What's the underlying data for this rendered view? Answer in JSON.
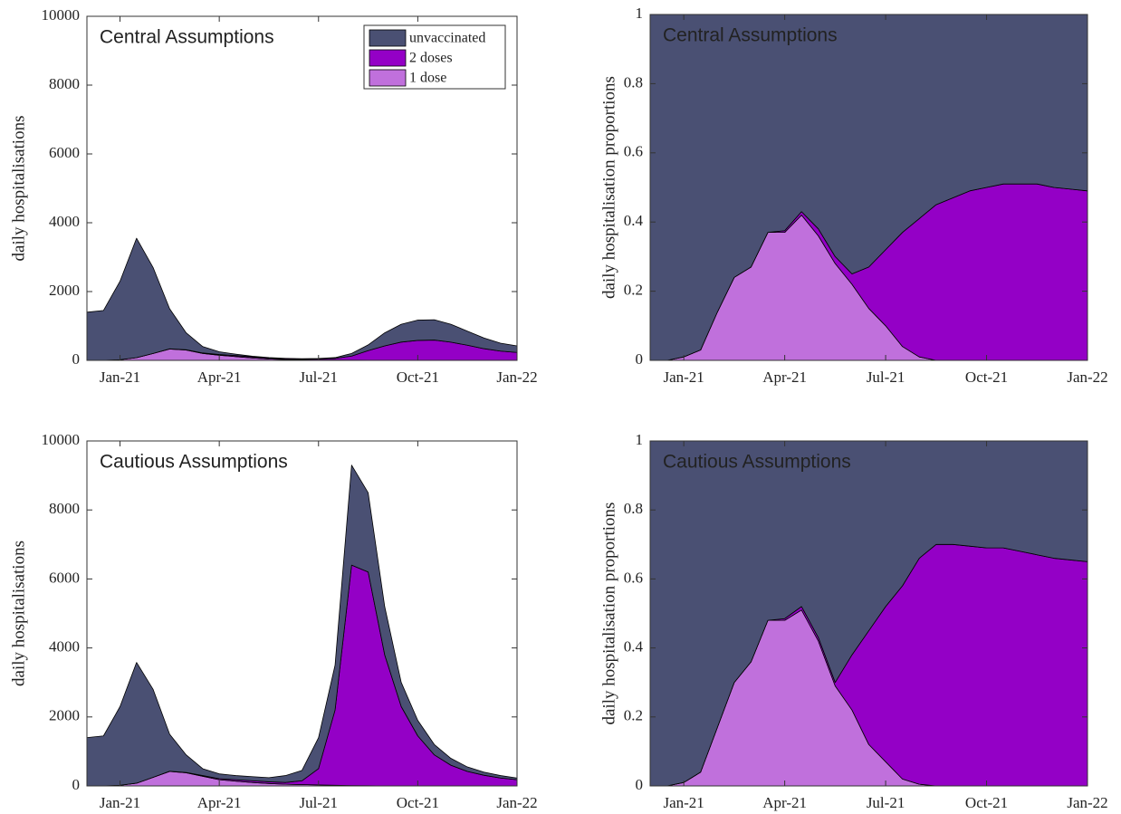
{
  "chart_data": [
    {
      "type": "stacked_area",
      "annotation": "Central Assumptions",
      "ylabel": "daily hospitalisations",
      "categories": [
        null,
        null,
        "Jan-21",
        null,
        null,
        null,
        null,
        null,
        "Apr-21",
        null,
        null,
        null,
        null,
        null,
        "Jul-21",
        null,
        null,
        null,
        null,
        null,
        "Oct-21",
        null,
        null,
        null,
        null,
        null,
        "Jan-22"
      ],
      "series": [
        {
          "name": "unvaccinated",
          "color": "#4a5073",
          "values": [
            1400,
            1450,
            2280,
            3470,
            2500,
            1165,
            490,
            185,
            80,
            40,
            20,
            15,
            10,
            10,
            15,
            22,
            75,
            167,
            378,
            519,
            590,
            590,
            520,
            410,
            310,
            230,
            190
          ]
        },
        {
          "name": "2 doses",
          "color": "#9400c6",
          "values": [
            0,
            0,
            0,
            0,
            0,
            5,
            10,
            15,
            20,
            30,
            30,
            25,
            25,
            25,
            30,
            50,
            120,
            280,
            420,
            530,
            580,
            590,
            530,
            440,
            340,
            270,
            230
          ]
        },
        {
          "name": "1 dose",
          "color": "#c070dc",
          "values": [
            0,
            0,
            20,
            80,
            200,
            330,
            300,
            200,
            150,
            110,
            70,
            40,
            25,
            15,
            10,
            8,
            5,
            3,
            2,
            1,
            0,
            0,
            0,
            0,
            0,
            0,
            0
          ]
        }
      ],
      "ylim": [
        0,
        10000
      ],
      "yticks": [
        0,
        2000,
        4000,
        6000,
        8000,
        10000
      ],
      "legend": "upper right"
    },
    {
      "type": "stacked_area",
      "annotation": "Central Assumptions",
      "ylabel": "daily hospitalisation proportions",
      "categories": [
        null,
        null,
        "Jan-21",
        null,
        null,
        null,
        null,
        null,
        "Apr-21",
        null,
        null,
        null,
        null,
        null,
        "Jul-21",
        null,
        null,
        null,
        null,
        null,
        "Oct-21",
        null,
        null,
        null,
        null,
        null,
        "Jan-22"
      ],
      "series": [
        {
          "color": "#4a5073",
          "values": [
            1,
            1,
            0.99,
            0.97,
            0.86,
            0.76,
            0.73,
            0.63,
            0.625,
            0.57,
            0.62,
            0.7,
            0.75,
            0.73,
            0.68,
            0.63,
            0.59,
            0.55,
            0.53,
            0.51,
            0.5,
            0.49,
            0.49,
            0.49,
            0.5,
            0.505,
            0.51
          ]
        },
        {
          "color": "#9400c6",
          "values": [
            0,
            0,
            0,
            0,
            0,
            0,
            0,
            0,
            0.005,
            0.01,
            0.02,
            0.02,
            0.03,
            0.12,
            0.22,
            0.33,
            0.4,
            0.45,
            0.47,
            0.49,
            0.5,
            0.51,
            0.51,
            0.51,
            0.5,
            0.495,
            0.49
          ]
        },
        {
          "color": "#c070dc",
          "values": [
            0,
            0,
            0.01,
            0.03,
            0.14,
            0.24,
            0.27,
            0.37,
            0.37,
            0.42,
            0.36,
            0.28,
            0.22,
            0.15,
            0.1,
            0.04,
            0.01,
            0,
            0,
            0,
            0,
            0,
            0,
            0,
            0,
            0,
            0
          ]
        }
      ],
      "ylim": [
        0,
        1
      ],
      "yticks": [
        0,
        0.2,
        0.4,
        0.6,
        0.8,
        1
      ]
    },
    {
      "type": "stacked_area",
      "annotation": "Cautious Assumptions",
      "ylabel": "daily hospitalisations",
      "categories": [
        null,
        null,
        "Jan-21",
        null,
        null,
        null,
        null,
        null,
        "Apr-21",
        null,
        null,
        null,
        null,
        null,
        "Jul-21",
        null,
        null,
        null,
        null,
        null,
        "Oct-21",
        null,
        null,
        null,
        null,
        null,
        "Jan-22"
      ],
      "series": [
        {
          "color": "#4a5073",
          "values": [
            1400,
            1450,
            2280,
            3500,
            2550,
            1075,
            510,
            200,
            140,
            120,
            120,
            120,
            200,
            300,
            900,
            1300,
            2900,
            2300,
            1400,
            700,
            450,
            300,
            200,
            130,
            90,
            70,
            50
          ]
        },
        {
          "color": "#9400c6",
          "values": [
            0,
            0,
            0,
            0,
            0,
            5,
            10,
            20,
            30,
            40,
            50,
            50,
            50,
            110,
            470,
            2180,
            6390,
            6195,
            3800,
            2300,
            1450,
            900,
            600,
            420,
            310,
            230,
            180
          ]
        },
        {
          "color": "#c070dc",
          "values": [
            0,
            0,
            20,
            80,
            250,
            420,
            380,
            280,
            180,
            140,
            100,
            70,
            50,
            40,
            30,
            20,
            10,
            5,
            0,
            0,
            0,
            0,
            0,
            0,
            0,
            0,
            0
          ]
        }
      ],
      "ylim": [
        0,
        10000
      ],
      "yticks": [
        0,
        2000,
        4000,
        6000,
        8000,
        10000
      ]
    },
    {
      "type": "stacked_area",
      "annotation": "Cautious Assumptions",
      "ylabel": "daily hospitalisation proportions",
      "categories": [
        null,
        null,
        "Jan-21",
        null,
        null,
        null,
        null,
        null,
        "Apr-21",
        null,
        null,
        null,
        null,
        null,
        "Jul-21",
        null,
        null,
        null,
        null,
        null,
        "Oct-21",
        null,
        null,
        null,
        null,
        null,
        "Jan-22"
      ],
      "series": [
        {
          "color": "#4a5073",
          "values": [
            1,
            1,
            0.99,
            0.96,
            0.83,
            0.7,
            0.64,
            0.52,
            0.515,
            0.48,
            0.57,
            0.7,
            0.62,
            0.55,
            0.48,
            0.42,
            0.34,
            0.3,
            0.3,
            0.305,
            0.31,
            0.31,
            0.32,
            0.33,
            0.34,
            0.345,
            0.35
          ]
        },
        {
          "color": "#9400c6",
          "values": [
            0,
            0,
            0,
            0,
            0,
            0,
            0,
            0,
            0.005,
            0.01,
            0.01,
            0.01,
            0.16,
            0.33,
            0.45,
            0.56,
            0.655,
            0.7,
            0.7,
            0.695,
            0.69,
            0.69,
            0.68,
            0.67,
            0.66,
            0.655,
            0.65
          ]
        },
        {
          "color": "#c070dc",
          "values": [
            0,
            0,
            0.01,
            0.04,
            0.17,
            0.3,
            0.36,
            0.48,
            0.48,
            0.51,
            0.42,
            0.29,
            0.22,
            0.12,
            0.07,
            0.02,
            0.005,
            0,
            0,
            0,
            0,
            0,
            0,
            0,
            0,
            0,
            0
          ]
        }
      ],
      "ylim": [
        0,
        1
      ],
      "yticks": [
        0,
        0.2,
        0.4,
        0.6,
        0.8,
        1
      ]
    }
  ]
}
